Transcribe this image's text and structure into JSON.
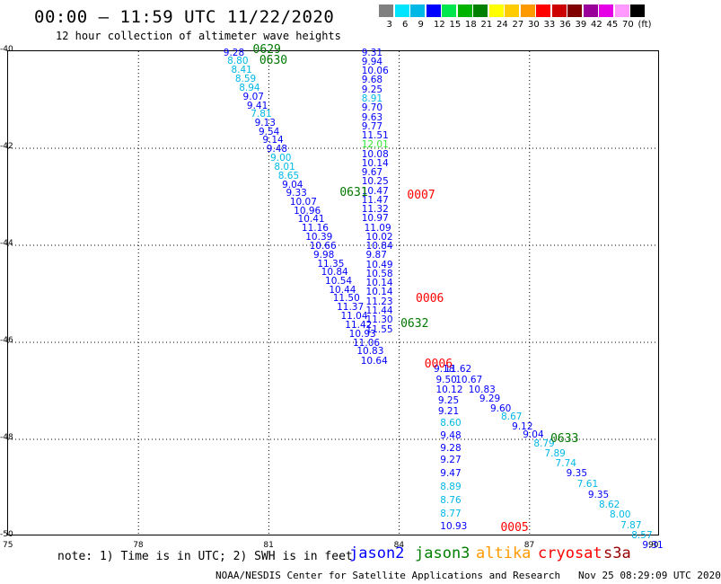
{
  "title": "00:00 – 11:59 UTC 11/22/2020",
  "subtitle": "12 hour collection of altimeter wave heights",
  "scale": {
    "labels": [
      "3",
      "6",
      "9",
      "12",
      "15",
      "18",
      "21",
      "24",
      "27",
      "30",
      "33",
      "36",
      "39",
      "42",
      "45",
      "70",
      "(ft)"
    ],
    "colors": [
      "#808080",
      "#00e5ff",
      "#00b8e6",
      "#0000ff",
      "#00e64d",
      "#00b300",
      "#008000",
      "#ffff00",
      "#ffcc00",
      "#ff9900",
      "#ff0000",
      "#cc0000",
      "#800000",
      "#990099",
      "#e600e6",
      "#ff99ff",
      "#000000"
    ]
  },
  "chart_data": {
    "type": "map",
    "xlim": [
      75,
      90
    ],
    "ylim": [
      -50,
      -40
    ],
    "x_ticks": [
      75,
      78,
      81,
      84,
      87,
      90
    ],
    "y_ticks": [
      -40,
      -42,
      -44,
      -46,
      -48,
      -50
    ],
    "x_tick_labels": [
      "75",
      "78",
      "81",
      "84",
      "87",
      "90"
    ],
    "y_tick_labels": [
      "-40",
      "-42",
      "-44",
      "-46",
      "-48",
      "-50"
    ],
    "grid": true,
    "colors": {
      "blue": "#0000ff",
      "cyan": "#00b8e6",
      "lightgreen": "#33e633",
      "green": "#007700",
      "red": "#ff0000"
    },
    "readings": [
      {
        "t": "9.28",
        "lon": 80.14,
        "lat": -40.05,
        "c": "blue"
      },
      {
        "t": "8.80",
        "lon": 80.23,
        "lat": -40.23,
        "c": "cyan"
      },
      {
        "t": "8.41",
        "lon": 80.32,
        "lat": -40.41,
        "c": "cyan"
      },
      {
        "t": "8.59",
        "lon": 80.41,
        "lat": -40.59,
        "c": "cyan"
      },
      {
        "t": "8.94",
        "lon": 80.5,
        "lat": -40.77,
        "c": "cyan"
      },
      {
        "t": "9.07",
        "lon": 80.59,
        "lat": -40.96,
        "c": "blue"
      },
      {
        "t": "9.41",
        "lon": 80.68,
        "lat": -41.14,
        "c": "blue"
      },
      {
        "t": "7.81",
        "lon": 80.77,
        "lat": -41.32,
        "c": "cyan"
      },
      {
        "t": "9.13",
        "lon": 80.86,
        "lat": -41.5,
        "c": "blue"
      },
      {
        "t": "9.54",
        "lon": 80.95,
        "lat": -41.68,
        "c": "blue"
      },
      {
        "t": "9.14",
        "lon": 81.04,
        "lat": -41.86,
        "c": "blue"
      },
      {
        "t": "9.48",
        "lon": 81.13,
        "lat": -42.04,
        "c": "blue"
      },
      {
        "t": "9.00",
        "lon": 81.22,
        "lat": -42.22,
        "c": "cyan"
      },
      {
        "t": "8.01",
        "lon": 81.31,
        "lat": -42.4,
        "c": "cyan"
      },
      {
        "t": "8.65",
        "lon": 81.4,
        "lat": -42.59,
        "c": "cyan"
      },
      {
        "t": "9.04",
        "lon": 81.49,
        "lat": -42.77,
        "c": "blue"
      },
      {
        "t": "9.33",
        "lon": 81.58,
        "lat": -42.95,
        "c": "blue"
      },
      {
        "t": "10.07",
        "lon": 81.67,
        "lat": -43.13,
        "c": "blue"
      },
      {
        "t": "10.96",
        "lon": 81.76,
        "lat": -43.31,
        "c": "blue"
      },
      {
        "t": "10.41",
        "lon": 81.85,
        "lat": -43.49,
        "c": "blue"
      },
      {
        "t": "11.16",
        "lon": 81.94,
        "lat": -43.67,
        "c": "blue"
      },
      {
        "t": "10.39",
        "lon": 82.03,
        "lat": -43.85,
        "c": "blue"
      },
      {
        "t": "10.66",
        "lon": 82.12,
        "lat": -44.04,
        "c": "blue"
      },
      {
        "t": "9.98",
        "lon": 82.21,
        "lat": -44.22,
        "c": "blue"
      },
      {
        "t": "11.35",
        "lon": 82.3,
        "lat": -44.4,
        "c": "blue"
      },
      {
        "t": "10.84",
        "lon": 82.39,
        "lat": -44.58,
        "c": "blue"
      },
      {
        "t": "10.54",
        "lon": 82.48,
        "lat": -44.76,
        "c": "blue"
      },
      {
        "t": "10.44",
        "lon": 82.57,
        "lat": -44.94,
        "c": "blue"
      },
      {
        "t": "11.50",
        "lon": 82.66,
        "lat": -45.12,
        "c": "blue"
      },
      {
        "t": "11.37",
        "lon": 82.75,
        "lat": -45.3,
        "c": "blue"
      },
      {
        "t": "11.04",
        "lon": 82.84,
        "lat": -45.48,
        "c": "blue"
      },
      {
        "t": "11.42",
        "lon": 82.94,
        "lat": -45.67,
        "c": "blue"
      },
      {
        "t": "10.93",
        "lon": 83.03,
        "lat": -45.85,
        "c": "blue"
      },
      {
        "t": "11.06",
        "lon": 83.12,
        "lat": -46.03,
        "c": "blue"
      },
      {
        "t": "10.83",
        "lon": 83.21,
        "lat": -46.21,
        "c": "blue"
      },
      {
        "t": "10.64",
        "lon": 83.3,
        "lat": -46.4,
        "c": "blue"
      },
      {
        "t": "9.31",
        "lon": 83.32,
        "lat": -40.05,
        "c": "blue"
      },
      {
        "t": "9.94",
        "lon": 83.32,
        "lat": -40.24,
        "c": "blue"
      },
      {
        "t": "10.06",
        "lon": 83.32,
        "lat": -40.43,
        "c": "blue"
      },
      {
        "t": "9.68",
        "lon": 83.32,
        "lat": -40.62,
        "c": "blue"
      },
      {
        "t": "9.25",
        "lon": 83.32,
        "lat": -40.81,
        "c": "blue"
      },
      {
        "t": "8.91",
        "lon": 83.32,
        "lat": -41.0,
        "c": "cyan"
      },
      {
        "t": "9.70",
        "lon": 83.32,
        "lat": -41.19,
        "c": "blue"
      },
      {
        "t": "9.63",
        "lon": 83.32,
        "lat": -41.38,
        "c": "blue"
      },
      {
        "t": "9.77",
        "lon": 83.32,
        "lat": -41.57,
        "c": "blue"
      },
      {
        "t": "11.51",
        "lon": 83.32,
        "lat": -41.76,
        "c": "blue"
      },
      {
        "t": "12.01",
        "lon": 83.32,
        "lat": -41.95,
        "c": "lightgreen"
      },
      {
        "t": "10.08",
        "lon": 83.32,
        "lat": -42.14,
        "c": "blue"
      },
      {
        "t": "10.14",
        "lon": 83.32,
        "lat": -42.33,
        "c": "blue"
      },
      {
        "t": "9.67",
        "lon": 83.32,
        "lat": -42.52,
        "c": "blue"
      },
      {
        "t": "10.25",
        "lon": 83.32,
        "lat": -42.71,
        "c": "blue"
      },
      {
        "t": "10.47",
        "lon": 83.32,
        "lat": -42.9,
        "c": "blue"
      },
      {
        "t": "11.47",
        "lon": 83.32,
        "lat": -43.09,
        "c": "blue"
      },
      {
        "t": "11.32",
        "lon": 83.32,
        "lat": -43.28,
        "c": "blue"
      },
      {
        "t": "10.97",
        "lon": 83.32,
        "lat": -43.47,
        "c": "blue"
      },
      {
        "t": "11.09",
        "lon": 83.38,
        "lat": -43.66,
        "c": "blue"
      },
      {
        "t": "10.02",
        "lon": 83.42,
        "lat": -43.85,
        "c": "blue"
      },
      {
        "t": "10.84",
        "lon": 83.42,
        "lat": -44.04,
        "c": "blue"
      },
      {
        "t": "9.87",
        "lon": 83.42,
        "lat": -44.23,
        "c": "blue"
      },
      {
        "t": "10.49",
        "lon": 83.42,
        "lat": -44.42,
        "c": "blue"
      },
      {
        "t": "10.58",
        "lon": 83.42,
        "lat": -44.61,
        "c": "blue"
      },
      {
        "t": "10.14",
        "lon": 83.42,
        "lat": -44.8,
        "c": "blue"
      },
      {
        "t": "10.14",
        "lon": 83.42,
        "lat": -44.99,
        "c": "blue"
      },
      {
        "t": "11.23",
        "lon": 83.42,
        "lat": -45.18,
        "c": "blue"
      },
      {
        "t": "11.44",
        "lon": 83.42,
        "lat": -45.37,
        "c": "blue"
      },
      {
        "t": "11.30",
        "lon": 83.42,
        "lat": -45.56,
        "c": "blue"
      },
      {
        "t": "11.55",
        "lon": 83.42,
        "lat": -45.75,
        "c": "blue"
      },
      {
        "t": "9.18",
        "lon": 84.98,
        "lat": -46.58,
        "c": "blue"
      },
      {
        "t": "11.62",
        "lon": 85.23,
        "lat": -46.58,
        "c": "blue"
      },
      {
        "t": "9.50",
        "lon": 85.03,
        "lat": -46.8,
        "c": "blue"
      },
      {
        "t": "10.67",
        "lon": 85.48,
        "lat": -46.8,
        "c": "blue"
      },
      {
        "t": "10.12",
        "lon": 85.03,
        "lat": -47.0,
        "c": "blue"
      },
      {
        "t": "10.83",
        "lon": 85.78,
        "lat": -47.0,
        "c": "blue"
      },
      {
        "t": "9.29",
        "lon": 86.03,
        "lat": -47.18,
        "c": "blue"
      },
      {
        "t": "9.25",
        "lon": 85.08,
        "lat": -47.22,
        "c": "blue"
      },
      {
        "t": "9.60",
        "lon": 86.28,
        "lat": -47.38,
        "c": "blue"
      },
      {
        "t": "9.21",
        "lon": 85.08,
        "lat": -47.45,
        "c": "blue"
      },
      {
        "t": "8.67",
        "lon": 86.53,
        "lat": -47.56,
        "c": "cyan"
      },
      {
        "t": "8.60",
        "lon": 85.13,
        "lat": -47.69,
        "c": "cyan"
      },
      {
        "t": "9.12",
        "lon": 86.78,
        "lat": -47.75,
        "c": "blue"
      },
      {
        "t": "9.04",
        "lon": 87.03,
        "lat": -47.92,
        "c": "blue"
      },
      {
        "t": "9.48",
        "lon": 85.13,
        "lat": -47.95,
        "c": "blue"
      },
      {
        "t": "8.79",
        "lon": 87.28,
        "lat": -48.12,
        "c": "cyan"
      },
      {
        "t": "9.28",
        "lon": 85.13,
        "lat": -48.2,
        "c": "blue"
      },
      {
        "t": "7.89",
        "lon": 87.53,
        "lat": -48.31,
        "c": "cyan"
      },
      {
        "t": "9.27",
        "lon": 85.13,
        "lat": -48.45,
        "c": "blue"
      },
      {
        "t": "7.74",
        "lon": 87.78,
        "lat": -48.52,
        "c": "cyan"
      },
      {
        "t": "9.35",
        "lon": 88.03,
        "lat": -48.73,
        "c": "blue"
      },
      {
        "t": "9.47",
        "lon": 85.13,
        "lat": -48.72,
        "c": "blue"
      },
      {
        "t": "7.61",
        "lon": 88.28,
        "lat": -48.95,
        "c": "cyan"
      },
      {
        "t": "8.89",
        "lon": 85.13,
        "lat": -49.0,
        "c": "cyan"
      },
      {
        "t": "9.35",
        "lon": 88.53,
        "lat": -49.16,
        "c": "blue"
      },
      {
        "t": "8.76",
        "lon": 85.13,
        "lat": -49.27,
        "c": "cyan"
      },
      {
        "t": "8.62",
        "lon": 88.78,
        "lat": -49.37,
        "c": "cyan"
      },
      {
        "t": "8.00",
        "lon": 89.03,
        "lat": -49.58,
        "c": "cyan"
      },
      {
        "t": "8.77",
        "lon": 85.13,
        "lat": -49.55,
        "c": "cyan"
      },
      {
        "t": "7.87",
        "lon": 89.28,
        "lat": -49.79,
        "c": "cyan"
      },
      {
        "t": "10.93",
        "lon": 85.13,
        "lat": -49.82,
        "c": "blue"
      },
      {
        "t": "8.57",
        "lon": 89.53,
        "lat": -50.0,
        "c": "cyan"
      },
      {
        "t": "9.31",
        "lon": 89.78,
        "lat": -50.21,
        "c": "blue"
      }
    ],
    "passes": [
      {
        "t": "0629",
        "lon": 80.9,
        "lat": -40.0,
        "c": "green"
      },
      {
        "t": "0630",
        "lon": 81.05,
        "lat": -40.23,
        "c": "green"
      },
      {
        "t": "0631",
        "lon": 82.9,
        "lat": -42.95,
        "c": "green"
      },
      {
        "t": "0007",
        "lon": 84.45,
        "lat": -43.0,
        "c": "red"
      },
      {
        "t": "0006",
        "lon": 84.65,
        "lat": -45.13,
        "c": "red"
      },
      {
        "t": "0632",
        "lon": 84.3,
        "lat": -45.65,
        "c": "green"
      },
      {
        "t": "0006",
        "lon": 84.85,
        "lat": -46.48,
        "c": "red"
      },
      {
        "t": "0633",
        "lon": 87.75,
        "lat": -48.02,
        "c": "green"
      },
      {
        "t": "0005",
        "lon": 86.6,
        "lat": -49.85,
        "c": "red"
      }
    ]
  },
  "note": "note: 1) Time is in UTC; 2) SWH is in feet",
  "legend": [
    {
      "label": "jason2",
      "color": "#0000ff"
    },
    {
      "label": "jason3",
      "color": "#008000"
    },
    {
      "label": "altika",
      "color": "#ff9900"
    },
    {
      "label": "cryosat",
      "color": "#ff0000"
    },
    {
      "label": "s3a",
      "color": "#990000"
    }
  ],
  "footer": "NOAA/NESDIS Center for Satellite Applications and Research   Nov 25 08:29:09 UTC 2020"
}
